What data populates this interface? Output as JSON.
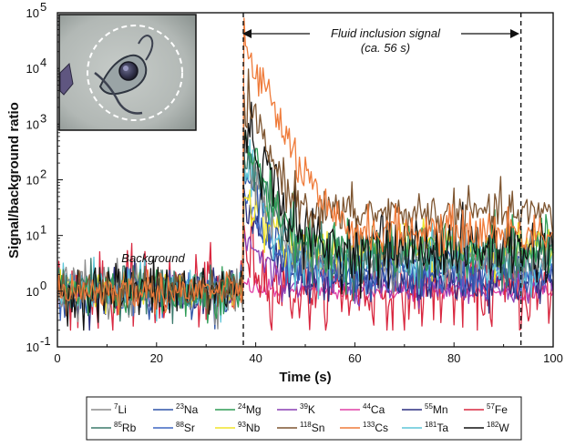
{
  "chart_data": {
    "type": "line",
    "title": "",
    "xlabel": "Time (s)",
    "ylabel": "Signal/background ratio",
    "xlim": [
      0,
      100
    ],
    "ylim": [
      0.1,
      100000
    ],
    "yscale": "log",
    "x_ticks": [
      "0",
      "20",
      "40",
      "60",
      "80",
      "100"
    ],
    "y_ticks": [
      {
        "base": "10",
        "exp": "-1"
      },
      {
        "base": "10",
        "exp": "0"
      },
      {
        "base": "10",
        "exp": "1"
      },
      {
        "base": "10",
        "exp": "2"
      },
      {
        "base": "10",
        "exp": "3"
      },
      {
        "base": "10",
        "exp": "4"
      },
      {
        "base": "10",
        "exp": "5"
      }
    ],
    "background_end_s": 37.5,
    "signal_end_s": 93.5,
    "annotations": {
      "background": "Background",
      "signal_line1": "Fluid inclusion signal",
      "signal_line2": "(ca. 56 s)"
    },
    "series": [
      {
        "name": "Li",
        "mass": "7",
        "color": "#8c8c8c",
        "bg": 1.0,
        "peak": 300,
        "plateau": 4,
        "noise": 0.25
      },
      {
        "name": "Na",
        "mass": "23",
        "color": "#2f54a8",
        "bg": 1.0,
        "peak": 150,
        "plateau": 2.5,
        "noise": 0.2
      },
      {
        "name": "Mg",
        "mass": "24",
        "color": "#2e9c55",
        "bg": 1.0,
        "peak": 600,
        "plateau": 6,
        "noise": 0.25
      },
      {
        "name": "K",
        "mass": "39",
        "color": "#8a3fb4",
        "bg": 1.0,
        "peak": 12,
        "plateau": 1.3,
        "noise": 0.15
      },
      {
        "name": "Ca",
        "mass": "44",
        "color": "#e040a6",
        "bg": 1.0,
        "peak": 1.4,
        "plateau": 1.0,
        "noise": 0.08
      },
      {
        "name": "Mn",
        "mass": "55",
        "color": "#2b2f80",
        "bg": 1.0,
        "peak": 40,
        "plateau": 1.5,
        "noise": 0.2
      },
      {
        "name": "Fe",
        "mass": "57",
        "color": "#d92840",
        "bg": 1.0,
        "peak": 8,
        "plateau": 1.0,
        "noise": 0.35
      },
      {
        "name": "Rb",
        "mass": "85",
        "color": "#3b7a6c",
        "bg": 1.0,
        "peak": 500,
        "plateau": 4.5,
        "noise": 0.25
      },
      {
        "name": "Sr",
        "mass": "88",
        "color": "#3f67c2",
        "bg": 1.0,
        "peak": 60,
        "plateau": 2.0,
        "noise": 0.2
      },
      {
        "name": "Nb",
        "mass": "93",
        "color": "#f0e42a",
        "bg": 1.0,
        "peak": 80,
        "plateau": 6,
        "noise": 0.2
      },
      {
        "name": "Sn",
        "mass": "118",
        "color": "#7e5530",
        "bg": 1.0,
        "peak": 3000,
        "plateau": 25,
        "noise": 0.2
      },
      {
        "name": "Cs",
        "mass": "133",
        "color": "#ef7b3a",
        "bg": 1.0,
        "peak": 30000,
        "plateau": 12,
        "noise": 0.2
      },
      {
        "name": "Ta",
        "mass": "181",
        "color": "#5fc6d8",
        "bg": 1.0,
        "peak": 200,
        "plateau": 3,
        "noise": 0.25
      },
      {
        "name": "W",
        "mass": "182",
        "color": "#111111",
        "bg": 1.0,
        "peak": 1200,
        "plateau": 6,
        "noise": 0.3
      }
    ]
  }
}
